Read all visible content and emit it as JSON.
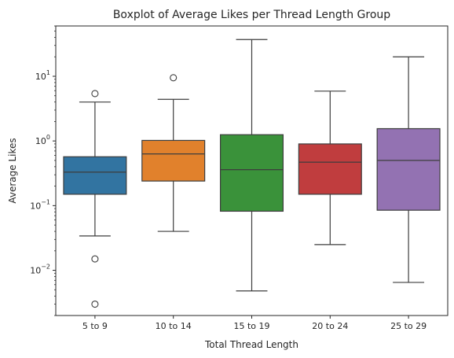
{
  "chart_data": {
    "type": "box",
    "title": "Boxplot of Average Likes per Thread Length Group",
    "xlabel": "Total Thread Length",
    "ylabel": "Average Likes",
    "yscale": "log",
    "ylim": [
      0.002,
      60
    ],
    "grid": false,
    "categories": [
      "5 to 9",
      "10 to 14",
      "15 to 19",
      "20 to 24",
      "25 to 29"
    ],
    "colors": [
      "#3274a1",
      "#e1812c",
      "#3a923a",
      "#c03d3e",
      "#9372b2"
    ],
    "boxes": [
      {
        "whislo": 0.034,
        "q1": 0.15,
        "med": 0.33,
        "q3": 0.57,
        "whishi": 4.0,
        "fliers": [
          5.4,
          0.015,
          0.003
        ]
      },
      {
        "whislo": 0.04,
        "q1": 0.24,
        "med": 0.63,
        "q3": 1.02,
        "whishi": 4.4,
        "fliers": [
          9.5
        ]
      },
      {
        "whislo": 0.0048,
        "q1": 0.082,
        "med": 0.36,
        "q3": 1.25,
        "whishi": 37,
        "fliers": []
      },
      {
        "whislo": 0.025,
        "q1": 0.15,
        "med": 0.47,
        "q3": 0.9,
        "whishi": 5.9,
        "fliers": []
      },
      {
        "whislo": 0.0065,
        "q1": 0.085,
        "med": 0.5,
        "q3": 1.55,
        "whishi": 20,
        "fliers": []
      }
    ],
    "yticks": [
      {
        "value": 0.01,
        "base": "10",
        "exp": "−2"
      },
      {
        "value": 0.1,
        "base": "10",
        "exp": "−1"
      },
      {
        "value": 1,
        "base": "10",
        "exp": "0"
      },
      {
        "value": 10,
        "base": "10",
        "exp": "1"
      }
    ]
  }
}
